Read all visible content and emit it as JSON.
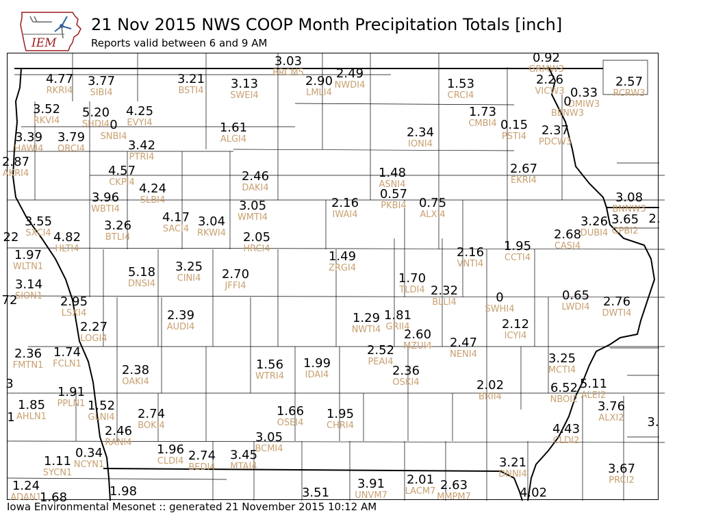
{
  "header": {
    "logo_text": "IEM",
    "title": "21 Nov 2015 NWS COOP Month Precipitation Totals [inch]",
    "subtitle": "Reports valid between 6 and 9 AM"
  },
  "footer": {
    "credit": "Iowa Environmental Mesonet :: generated 21 November 2015 10:12 AM"
  },
  "colors": {
    "value": "#000000",
    "station_code": "#c8a070",
    "border": "#000000"
  },
  "stations": [
    {
      "value": "3.03",
      "code": "BRCM5"
    },
    {
      "value": "0.92",
      "code": "GRMW3"
    },
    {
      "value": "4.77",
      "code": "RKRI4"
    },
    {
      "value": "3.77",
      "code": "SIBI4"
    },
    {
      "value": "3.21",
      "code": "BSTI4"
    },
    {
      "value": "3.13",
      "code": "SWEI4"
    },
    {
      "value": "2.90",
      "code": "LMLI4"
    },
    {
      "value": "2.49",
      "code": "NWDI4"
    },
    {
      "value": "1.53",
      "code": "CRCI4"
    },
    {
      "value": "2.26",
      "code": "VICW3"
    },
    {
      "value": "0.33",
      "code": "DMIW3"
    },
    {
      "value": "0",
      "code": "BENW3"
    },
    {
      "value": "2.57",
      "code": "RCRW3"
    },
    {
      "value": "3.52",
      "code": "RKVI4"
    },
    {
      "value": "5.20",
      "code": "SHDI4"
    },
    {
      "value": "0",
      "code": "SNBI4"
    },
    {
      "value": "4.25",
      "code": "EVYI4"
    },
    {
      "value": "1.73",
      "code": "CMBI4"
    },
    {
      "value": "0.15",
      "code": "PSTI4"
    },
    {
      "value": "2.37",
      "code": "PDCW3"
    },
    {
      "value": "3.39",
      "code": "HAWI4"
    },
    {
      "value": "3.79",
      "code": "OBCI4"
    },
    {
      "value": "1.61",
      "code": "ALGI4"
    },
    {
      "value": "2.34",
      "code": "IONI4"
    },
    {
      "value": "3.42",
      "code": "PTRI4"
    },
    {
      "value": "2.87",
      "code": "AKRI4"
    },
    {
      "value": "4.57",
      "code": "CKPI4"
    },
    {
      "value": "2.46",
      "code": "DAKI4"
    },
    {
      "value": "1.48",
      "code": "ASNI4"
    },
    {
      "value": "2.67",
      "code": "EKRI4"
    },
    {
      "value": "4.24",
      "code": "SLBI4"
    },
    {
      "value": "0.57",
      "code": "PKBI4"
    },
    {
      "value": "3.96",
      "code": "WBTI4"
    },
    {
      "value": "3.05",
      "code": "WMTI4"
    },
    {
      "value": "2.16",
      "code": "IWAI4"
    },
    {
      "value": "0.75",
      "code": "ALXI4"
    },
    {
      "value": "3.08",
      "code": "BNNW3"
    },
    {
      "value": "3.55",
      "code": "SXCI4"
    },
    {
      "value": "4.17",
      "code": "SACI4"
    },
    {
      "value": "3.26",
      "code": "BTLI4"
    },
    {
      "value": "3.04",
      "code": "RKWI4"
    },
    {
      "value": "3.26",
      "code": "DUBI4"
    },
    {
      "value": "3.65",
      "code": "GPBI2"
    },
    {
      "value": "2.68",
      "code": "CASI4"
    },
    {
      "value": "4.82",
      "code": "HLTI4"
    },
    {
      "value": "2.05",
      "code": "HRCI4"
    },
    {
      "value": "1.95",
      "code": "CCTI4"
    },
    {
      "value": "1.97",
      "code": "WLTN1"
    },
    {
      "value": "2.16",
      "code": "VNTI4"
    },
    {
      "value": "1.49",
      "code": "ZRGI4"
    },
    {
      "value": "5.18",
      "code": "DNSI4"
    },
    {
      "value": "3.25",
      "code": "CINI4"
    },
    {
      "value": "2.70",
      "code": "JFFI4"
    },
    {
      "value": "1.70",
      "code": "TLDI4"
    },
    {
      "value": "3.14",
      "code": "SION1"
    },
    {
      "value": "2.32",
      "code": "BLLI4"
    },
    {
      "value": "0.65",
      "code": "LWDI4"
    },
    {
      "value": "0",
      "code": "SWHI4"
    },
    {
      "value": "2.76",
      "code": "DWTI4"
    },
    {
      "value": "2.95",
      "code": "LSXI4"
    },
    {
      "value": "2.39",
      "code": "AUDI4"
    },
    {
      "value": "1.29",
      "code": "NWTI4"
    },
    {
      "value": "1.81",
      "code": "GRII4"
    },
    {
      "value": "2.27",
      "code": "LOGI4"
    },
    {
      "value": "2.12",
      "code": "ICYI4"
    },
    {
      "value": "2.60",
      "code": "MZUI4"
    },
    {
      "value": "2.47",
      "code": "NENI4"
    },
    {
      "value": "2.36",
      "code": "FMTN1"
    },
    {
      "value": "1.74",
      "code": "FCLN1"
    },
    {
      "value": "2.52",
      "code": "PEAI4"
    },
    {
      "value": "3.25",
      "code": "MCTI4"
    },
    {
      "value": "2.38",
      "code": "OAKI4"
    },
    {
      "value": "1.56",
      "code": "WTRI4"
    },
    {
      "value": "1.99",
      "code": "IDAI4"
    },
    {
      "value": "2.36",
      "code": "OSKI4"
    },
    {
      "value": "2.02",
      "code": "BRII4"
    },
    {
      "value": "5.11",
      "code": "ALEI2"
    },
    {
      "value": "6.52",
      "code": "NBOI2"
    },
    {
      "value": "1.91",
      "code": "PPLN1"
    },
    {
      "value": "1.85",
      "code": "AHLN1"
    },
    {
      "value": "1.52",
      "code": "GLNI4"
    },
    {
      "value": "2.74",
      "code": "BOKI4"
    },
    {
      "value": "1.66",
      "code": "OSEI4"
    },
    {
      "value": "1.95",
      "code": "CHRI4"
    },
    {
      "value": "3.76",
      "code": "ALXI2"
    },
    {
      "value": "2.46",
      "code": "RANI4"
    },
    {
      "value": "4.43",
      "code": "CLDI2"
    },
    {
      "value": "3.05",
      "code": "BCMI4"
    },
    {
      "value": "1.96",
      "code": "CLDI4"
    },
    {
      "value": "1.11",
      "code": "SYCN1"
    },
    {
      "value": "0.34",
      "code": "NCYN1"
    },
    {
      "value": "2.74",
      "code": "BEDI4"
    },
    {
      "value": "3.45",
      "code": "MTAI4"
    },
    {
      "value": "3.21",
      "code": "DNNI4"
    },
    {
      "value": "3.67",
      "code": "PRCI2"
    },
    {
      "value": "1.24",
      "code": "ADAN1"
    },
    {
      "value": "1.68",
      "code": ""
    },
    {
      "value": "1.98",
      "code": ""
    },
    {
      "value": "3.91",
      "code": "UNVM7"
    },
    {
      "value": "2.01",
      "code": "LACM7"
    },
    {
      "value": "2.63",
      "code": "MMPM7"
    },
    {
      "value": "3.51",
      "code": ""
    },
    {
      "value": "4.02",
      "code": ""
    },
    {
      "value": "22",
      "code": ""
    },
    {
      "value": "72",
      "code": ""
    },
    {
      "value": "3",
      "code": ""
    },
    {
      "value": "1",
      "code": ""
    },
    {
      "value": "2.",
      "code": ""
    },
    {
      "value": "3.",
      "code": ""
    }
  ]
}
